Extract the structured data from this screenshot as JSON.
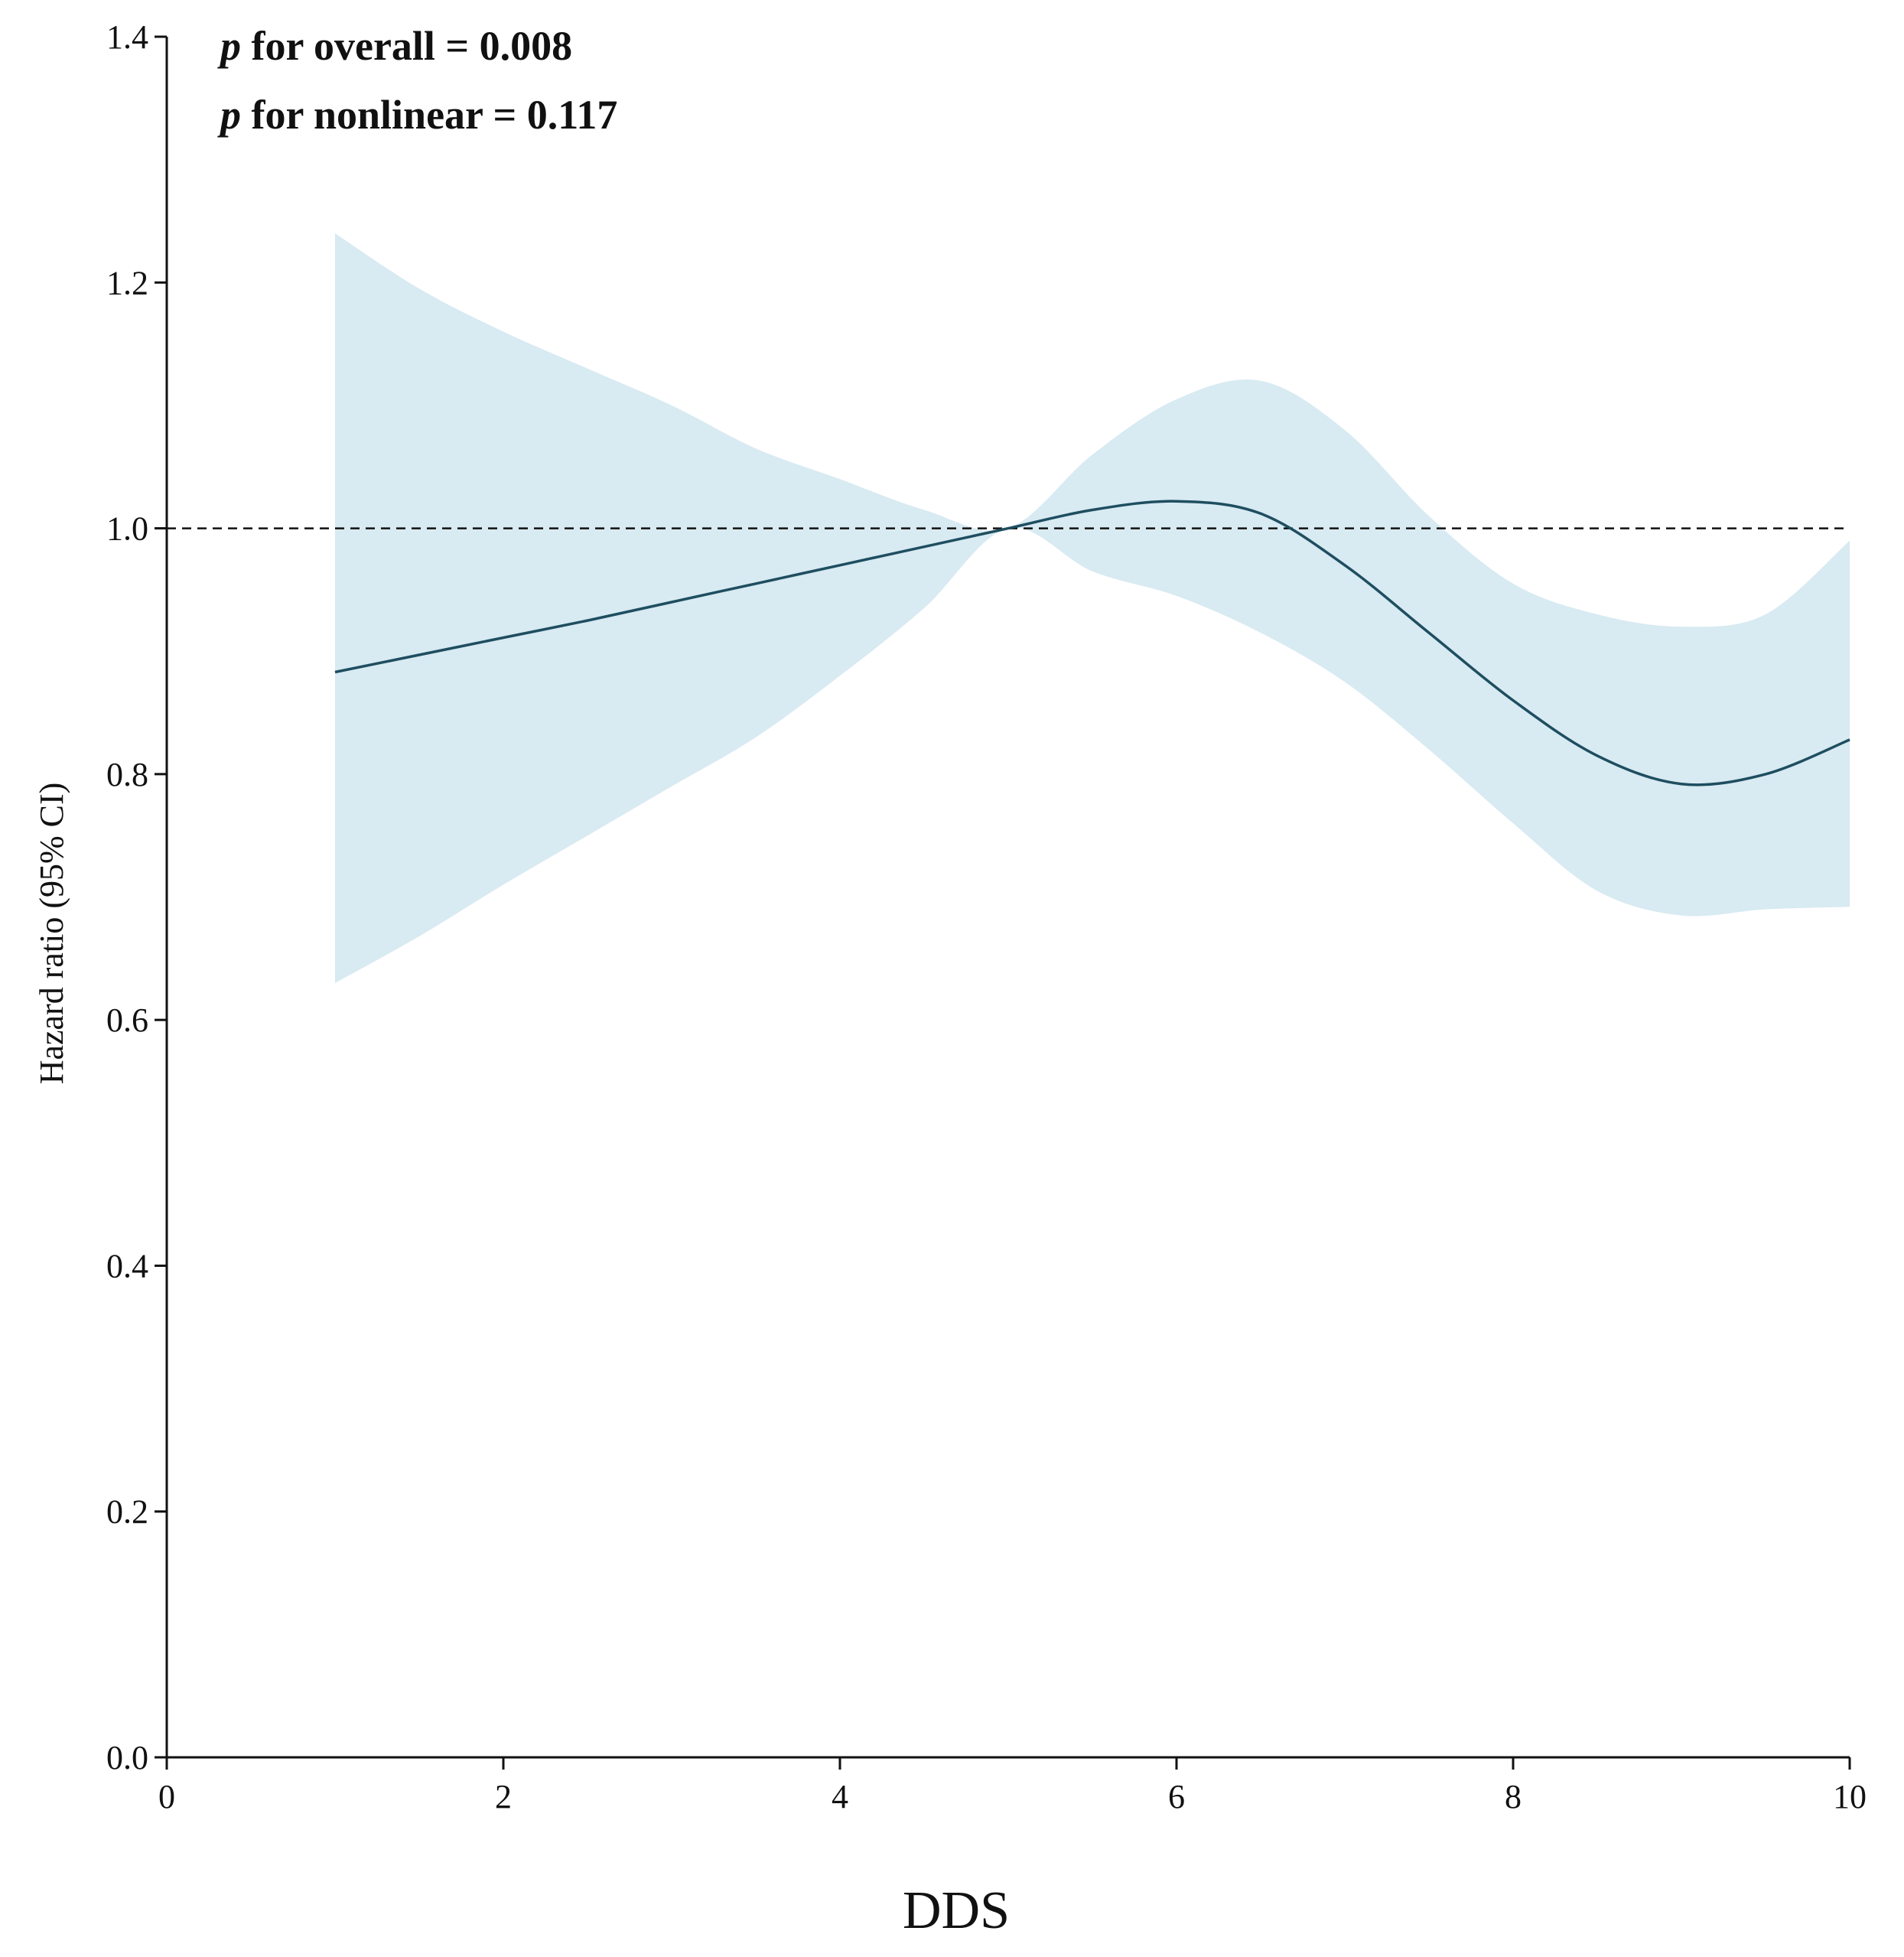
{
  "chart_data": {
    "type": "line",
    "title": "",
    "xlabel": "DDS",
    "ylabel": "Hazard ratio (95% CI)",
    "xlim": [
      0,
      10
    ],
    "ylim": [
      0.0,
      1.4
    ],
    "xticks": [
      0,
      2,
      4,
      6,
      8,
      10
    ],
    "xtick_labels": [
      "0",
      "2",
      "4",
      "6",
      "8",
      "10"
    ],
    "yticks": [
      0.0,
      0.2,
      0.4,
      0.6,
      0.8,
      1.0,
      1.2,
      1.4
    ],
    "ytick_labels": [
      "0.0",
      "0.2",
      "0.4",
      "0.6",
      "0.8",
      "1.0",
      "1.2",
      "1.4"
    ],
    "reference_line": {
      "y": 1.0,
      "style": "dashed"
    },
    "annotations": [
      {
        "italic": "p",
        "text": " for overall = 0.008"
      },
      {
        "italic": "p",
        "text": " for nonlinear = 0.117"
      }
    ],
    "series": [
      {
        "name": "Hazard ratio",
        "x": [
          1.0,
          1.5,
          2.0,
          2.5,
          3.0,
          3.5,
          4.0,
          4.5,
          5.0,
          5.5,
          6.0,
          6.5,
          7.0,
          7.5,
          8.0,
          8.5,
          9.0,
          9.5,
          10.0
        ],
        "y": [
          0.883,
          0.897,
          0.911,
          0.925,
          0.94,
          0.955,
          0.97,
          0.985,
          1.0,
          1.015,
          1.022,
          1.012,
          0.97,
          0.915,
          0.86,
          0.815,
          0.792,
          0.8,
          0.828
        ],
        "lower": [
          0.63,
          0.668,
          0.71,
          0.75,
          0.79,
          0.83,
          0.88,
          0.935,
          1.0,
          0.965,
          0.945,
          0.915,
          0.875,
          0.82,
          0.76,
          0.705,
          0.685,
          0.69,
          0.692
        ],
        "upper": [
          1.24,
          1.195,
          1.16,
          1.13,
          1.1,
          1.065,
          1.04,
          1.015,
          1.0,
          1.06,
          1.105,
          1.12,
          1.08,
          1.01,
          0.955,
          0.93,
          0.92,
          0.93,
          0.99
        ]
      }
    ],
    "colors": {
      "line": "#1e4e60",
      "band": "#d8eaf2",
      "axis": "#111111",
      "reference": "#111111"
    }
  }
}
